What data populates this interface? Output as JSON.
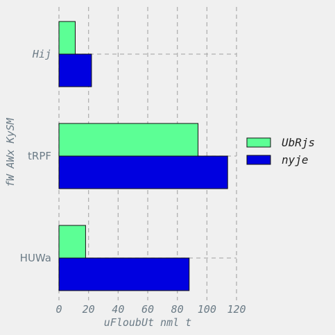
{
  "chart_data": {
    "type": "bar",
    "orientation": "horizontal",
    "categories": [
      "Hij",
      "tRPF",
      "HUWa"
    ],
    "series": [
      {
        "name": "UbRjs",
        "color": "#5cff95",
        "values": [
          11,
          94,
          18
        ]
      },
      {
        "name": "nyje",
        "color": "#0000e0",
        "values": [
          22,
          114,
          88
        ]
      }
    ],
    "xlabel": "uFloubUt nml t",
    "ylabel": "fW AWx KySM",
    "xlim": [
      0,
      120
    ],
    "xticks": [
      0,
      20,
      40,
      60,
      80,
      100,
      120
    ],
    "grid": true,
    "legend": "right"
  }
}
